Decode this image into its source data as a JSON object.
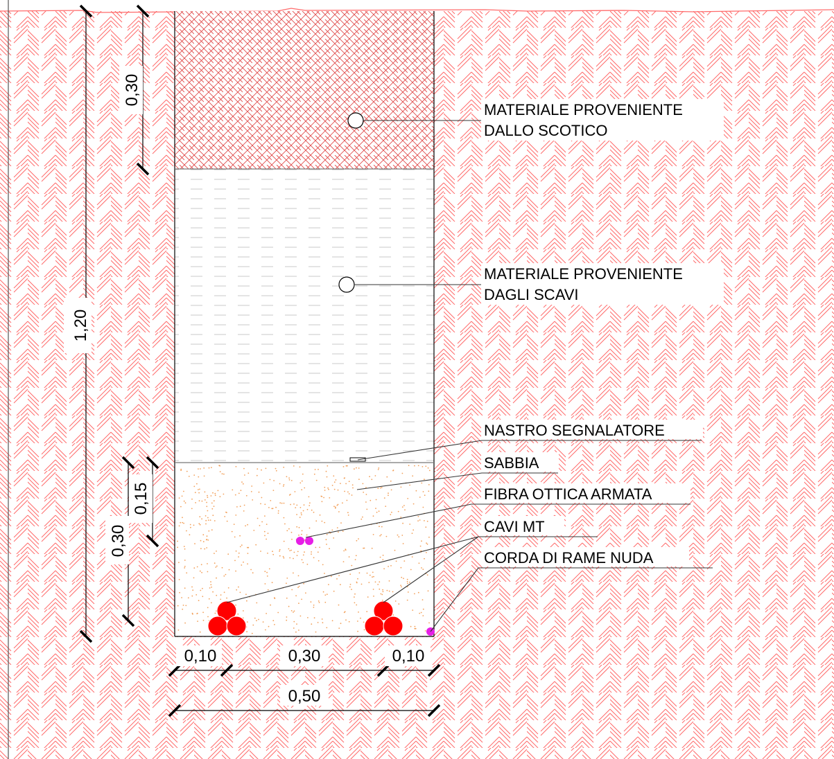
{
  "colors": {
    "soil_hatch": "#ff6a6a",
    "sand_dots": "#f2a05a",
    "mt_cable": "#ff0000",
    "fiber_and_copper": "#e61ee6",
    "ink": "#000000"
  },
  "labels": {
    "scotico_line1": "MATERIALE PROVENIENTE",
    "scotico_line2": "DALLO SCOTICO",
    "scavi_line1": "MATERIALE PROVENIENTE",
    "scavi_line2": "DAGLI SCAVI",
    "nastro": "NASTRO SEGNALATORE",
    "sabbia": "SABBIA",
    "fibra": "FIBRA OTTICA ARMATA",
    "cavi": "CAVI MT",
    "corda": "CORDA DI RAME NUDA"
  },
  "dimensions": {
    "top_layer_depth": "0,30",
    "total_depth": "1,20",
    "sand_layer_depth": "0,30",
    "fiber_depth": "0,15",
    "left_offset": "0,10",
    "cable_spacing": "0,30",
    "right_offset": "0,10",
    "trench_width": "0,50"
  }
}
